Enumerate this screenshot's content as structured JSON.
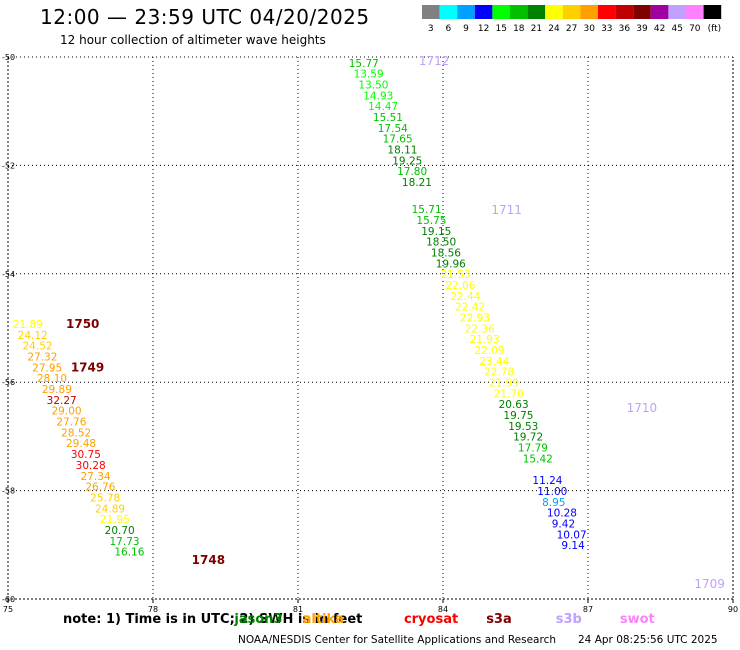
{
  "header": {
    "title": "12:00 — 23:59 UTC 04/20/2025",
    "subtitle": "12 hour collection of altimeter wave heights"
  },
  "legend": {
    "colors": [
      "#808080",
      "#00ffff",
      "#00a0ff",
      "#0000ff",
      "#00ff00",
      "#00c000",
      "#008000",
      "#ffff00",
      "#ffd000",
      "#ffa000",
      "#ff0000",
      "#c00000",
      "#800000",
      "#a000a0",
      "#c0a0ff",
      "#ff80ff",
      "#000000"
    ],
    "labels": [
      "3",
      "6",
      "9",
      "12",
      "15",
      "18",
      "21",
      "24",
      "27",
      "30",
      "33",
      "36",
      "39",
      "42",
      "45",
      "70",
      "(ft)"
    ]
  },
  "note": {
    "prefix": "note: 1) Time is in UTC; 2) SWH is in feet",
    "satellites": [
      {
        "name": "jason3",
        "color": "#008000"
      },
      {
        "name": "altika",
        "color": "#ffa000"
      },
      {
        "name": "cryosat",
        "color": "#ff0000"
      },
      {
        "name": "s3a",
        "color": "#800000"
      },
      {
        "name": "s3b",
        "color": "#c0a0ff"
      },
      {
        "name": "swot",
        "color": "#ff80ff"
      }
    ]
  },
  "footer": {
    "credit": "NOAA/NESDIS Center for Satellite Applications and Research",
    "timestamp": "24 Apr 08:25:56 UTC 2025"
  },
  "chart_data": {
    "type": "scatter",
    "xlim": [
      75,
      90
    ],
    "ylim": [
      -60,
      -50
    ],
    "xticks": [
      75,
      78,
      81,
      84,
      87,
      90
    ],
    "yticks": [
      -50,
      -52,
      -54,
      -56,
      -58,
      -60
    ],
    "xtick_labels": [
      "75",
      "78",
      "81",
      "84",
      "87",
      "90"
    ],
    "ytick_labels": [
      "-50",
      "-52",
      "-54",
      "-56",
      "-58",
      "-60"
    ],
    "grid": true,
    "time_labels": [
      {
        "text": "1712",
        "x": 83.5,
        "y": -50.15,
        "color": "#c0a0ff"
      },
      {
        "text": "1711",
        "x": 85.0,
        "y": -52.9,
        "color": "#c0a0ff"
      },
      {
        "text": "1750",
        "x": 76.2,
        "y": -55.0,
        "color": "#800000"
      },
      {
        "text": "1749",
        "x": 76.3,
        "y": -55.8,
        "color": "#800000"
      },
      {
        "text": "1710",
        "x": 87.8,
        "y": -56.55,
        "color": "#c0a0ff"
      },
      {
        "text": "1748",
        "x": 78.8,
        "y": -59.35,
        "color": "#800000"
      },
      {
        "text": "1709",
        "x": 89.2,
        "y": -59.8,
        "color": "#c0a0ff"
      }
    ],
    "points": [
      {
        "x": 82.05,
        "y": -50.18,
        "label": "15.77",
        "color": "#00c000"
      },
      {
        "x": 82.15,
        "y": -50.38,
        "label": "13.59",
        "color": "#00ff00"
      },
      {
        "x": 82.25,
        "y": -50.58,
        "label": "13.50",
        "color": "#00ff00"
      },
      {
        "x": 82.35,
        "y": -50.78,
        "label": "14.93",
        "color": "#00ff00"
      },
      {
        "x": 82.45,
        "y": -50.98,
        "label": "14.47",
        "color": "#00ff00"
      },
      {
        "x": 82.55,
        "y": -51.18,
        "label": "15.51",
        "color": "#00c000"
      },
      {
        "x": 82.65,
        "y": -51.38,
        "label": "17.54",
        "color": "#00c000"
      },
      {
        "x": 82.75,
        "y": -51.58,
        "label": "17.65",
        "color": "#00c000"
      },
      {
        "x": 82.85,
        "y": -51.78,
        "label": "18.11",
        "color": "#008000"
      },
      {
        "x": 82.95,
        "y": -51.98,
        "label": "19.25",
        "color": "#008000"
      },
      {
        "x": 83.05,
        "y": -52.18,
        "label": "17.80",
        "color": "#00c000"
      },
      {
        "x": 83.15,
        "y": -52.38,
        "label": "18.21",
        "color": "#008000"
      },
      {
        "x": 83.35,
        "y": -52.88,
        "label": "15.71",
        "color": "#00c000"
      },
      {
        "x": 83.45,
        "y": -53.08,
        "label": "15.75",
        "color": "#00c000"
      },
      {
        "x": 83.55,
        "y": -53.28,
        "label": "19.15",
        "color": "#008000"
      },
      {
        "x": 83.65,
        "y": -53.48,
        "label": "18.50",
        "color": "#008000"
      },
      {
        "x": 83.75,
        "y": -53.68,
        "label": "18.56",
        "color": "#008000"
      },
      {
        "x": 83.85,
        "y": -53.88,
        "label": "19.96",
        "color": "#008000"
      },
      {
        "x": 83.95,
        "y": -54.08,
        "label": "21.53",
        "color": "#ffff00"
      },
      {
        "x": 84.05,
        "y": -54.28,
        "label": "22.06",
        "color": "#ffff00"
      },
      {
        "x": 84.15,
        "y": -54.48,
        "label": "22.44",
        "color": "#ffff00"
      },
      {
        "x": 84.25,
        "y": -54.68,
        "label": "22.42",
        "color": "#ffff00"
      },
      {
        "x": 84.35,
        "y": -54.88,
        "label": "22.93",
        "color": "#ffff00"
      },
      {
        "x": 84.45,
        "y": -55.08,
        "label": "22.36",
        "color": "#ffff00"
      },
      {
        "x": 84.55,
        "y": -55.28,
        "label": "21.93",
        "color": "#ffff00"
      },
      {
        "x": 84.65,
        "y": -55.48,
        "label": "22.09",
        "color": "#ffff00"
      },
      {
        "x": 84.75,
        "y": -55.68,
        "label": "23.44",
        "color": "#ffff00"
      },
      {
        "x": 84.85,
        "y": -55.88,
        "label": "22.78",
        "color": "#ffff00"
      },
      {
        "x": 84.95,
        "y": -56.08,
        "label": "21.99",
        "color": "#ffff00"
      },
      {
        "x": 85.05,
        "y": -56.28,
        "label": "21.70",
        "color": "#ffff00"
      },
      {
        "x": 85.15,
        "y": -56.48,
        "label": "20.63",
        "color": "#008000"
      },
      {
        "x": 85.25,
        "y": -56.68,
        "label": "19.75",
        "color": "#008000"
      },
      {
        "x": 85.35,
        "y": -56.88,
        "label": "19.53",
        "color": "#008000"
      },
      {
        "x": 85.45,
        "y": -57.08,
        "label": "19.72",
        "color": "#008000"
      },
      {
        "x": 85.55,
        "y": -57.28,
        "label": "17.79",
        "color": "#00c000"
      },
      {
        "x": 85.65,
        "y": -57.48,
        "label": "15.42",
        "color": "#00c000"
      },
      {
        "x": 85.85,
        "y": -57.88,
        "label": "11.24",
        "color": "#0000ff"
      },
      {
        "x": 85.95,
        "y": -58.08,
        "label": "11.00",
        "color": "#0000ff"
      },
      {
        "x": 86.05,
        "y": -58.28,
        "label": "8.95",
        "color": "#00a0ff"
      },
      {
        "x": 86.15,
        "y": -58.48,
        "label": "10.28",
        "color": "#0000ff"
      },
      {
        "x": 86.25,
        "y": -58.68,
        "label": "9.42",
        "color": "#0000ff"
      },
      {
        "x": 86.35,
        "y": -58.88,
        "label": "10.07",
        "color": "#0000ff"
      },
      {
        "x": 86.45,
        "y": -59.08,
        "label": "9.14",
        "color": "#0000ff"
      },
      {
        "x": 75.1,
        "y": -55.0,
        "label": "21.89",
        "color": "#ffff00"
      },
      {
        "x": 75.2,
        "y": -55.2,
        "label": "24.12",
        "color": "#ffd000"
      },
      {
        "x": 75.3,
        "y": -55.4,
        "label": "24.52",
        "color": "#ffd000"
      },
      {
        "x": 75.4,
        "y": -55.6,
        "label": "27.32",
        "color": "#ffa000"
      },
      {
        "x": 75.5,
        "y": -55.8,
        "label": "27.95",
        "color": "#ffa000"
      },
      {
        "x": 75.6,
        "y": -56.0,
        "label": "28.10",
        "color": "#ffa000"
      },
      {
        "x": 75.7,
        "y": -56.2,
        "label": "29.89",
        "color": "#ffa000"
      },
      {
        "x": 75.8,
        "y": -56.4,
        "label": "32.27",
        "color": "#c00000"
      },
      {
        "x": 75.9,
        "y": -56.6,
        "label": "29.00",
        "color": "#ffa000"
      },
      {
        "x": 76.0,
        "y": -56.8,
        "label": "27.76",
        "color": "#ffa000"
      },
      {
        "x": 76.1,
        "y": -57.0,
        "label": "28.52",
        "color": "#ffa000"
      },
      {
        "x": 76.2,
        "y": -57.2,
        "label": "29.48",
        "color": "#ffa000"
      },
      {
        "x": 76.3,
        "y": -57.4,
        "label": "30.75",
        "color": "#ff0000"
      },
      {
        "x": 76.4,
        "y": -57.6,
        "label": "30.28",
        "color": "#ff0000"
      },
      {
        "x": 76.5,
        "y": -57.8,
        "label": "27.34",
        "color": "#ffa000"
      },
      {
        "x": 76.6,
        "y": -58.0,
        "label": "26.76",
        "color": "#ffa000"
      },
      {
        "x": 76.7,
        "y": -58.2,
        "label": "25.78",
        "color": "#ffd000"
      },
      {
        "x": 76.8,
        "y": -58.4,
        "label": "24.89",
        "color": "#ffd000"
      },
      {
        "x": 76.9,
        "y": -58.6,
        "label": "21.95",
        "color": "#ffff00"
      },
      {
        "x": 77.0,
        "y": -58.8,
        "label": "20.70",
        "color": "#008000"
      },
      {
        "x": 77.1,
        "y": -59.0,
        "label": "17.73",
        "color": "#00c000"
      },
      {
        "x": 77.2,
        "y": -59.2,
        "label": "16.16",
        "color": "#00c000"
      }
    ]
  }
}
